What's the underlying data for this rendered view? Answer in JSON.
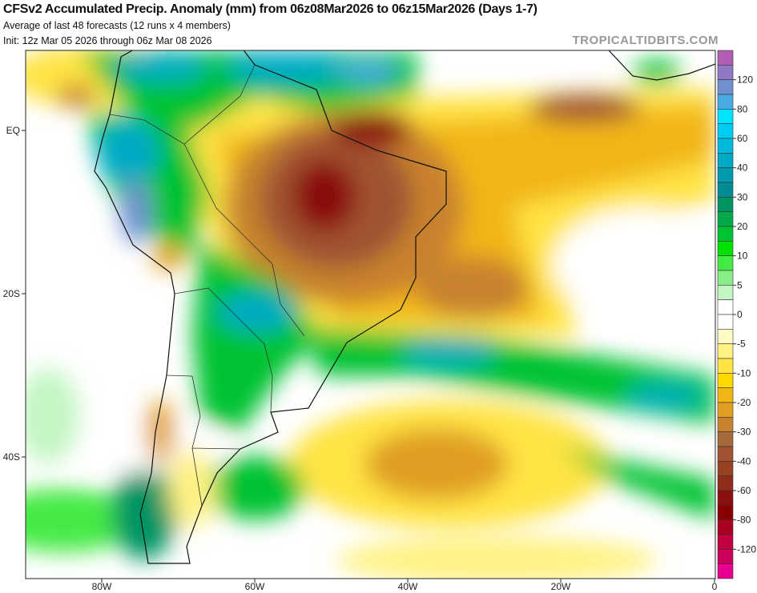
{
  "header": {
    "title": "CFSv2 Accumulated Precip. Anomaly (mm) from 06z08Mar2026 to 06z15Mar2026 (Days 1-7)",
    "subtitle": "Average of last 48 forecasts (12 runs x 4 members)",
    "init": "Init: 12z Mar 05 2026 through 06z Mar 08 2026",
    "watermark": "TROPICALTIDBITS.COM"
  },
  "axes": {
    "lon_labels": [
      "80W",
      "60W",
      "40W",
      "20W",
      "0"
    ],
    "lat_labels": [
      "EQ",
      "20S",
      "40S"
    ]
  },
  "colorbar": {
    "labels": [
      "120",
      "80",
      "60",
      "40",
      "30",
      "20",
      "10",
      "5",
      "0",
      "-5",
      "-10",
      "-20",
      "-30",
      "-40",
      "-60",
      "-80",
      "-120"
    ],
    "colors": [
      "#b35cb3",
      "#9078c2",
      "#7090d0",
      "#4aaae2",
      "#00e4ff",
      "#00ccf2",
      "#00badc",
      "#00aac4",
      "#009aae",
      "#008c92",
      "#009464",
      "#00aa48",
      "#00c232",
      "#00e000",
      "#44ea44",
      "#88ec88",
      "#c4f6c4",
      "#ffffff",
      "#ffffff",
      "#fffbc2",
      "#fff284",
      "#ffe444",
      "#ffd800",
      "#f2b614",
      "#e09e22",
      "#c8822e",
      "#a46a3a",
      "#a05232",
      "#984224",
      "#902c1a",
      "#8a1010",
      "#8a0000",
      "#aa0022",
      "#c20040",
      "#cc005c",
      "#ea0090"
    ]
  }
}
